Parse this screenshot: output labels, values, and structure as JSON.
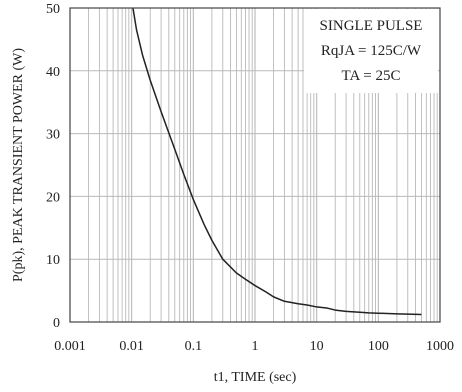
{
  "chart_data": {
    "type": "line",
    "xscale": "log",
    "yscale": "linear",
    "xlim": [
      0.001,
      1000
    ],
    "ylim": [
      0,
      50
    ],
    "xlabel": "t1, TIME (sec)",
    "ylabel": "P(pk), PEAK TRANSIENT POWER (W)",
    "x_ticks": [
      0.001,
      0.01,
      0.1,
      1,
      10,
      100,
      1000
    ],
    "x_tick_labels": [
      "0.001",
      "0.01",
      "0.1",
      "1",
      "10",
      "100",
      "1000"
    ],
    "y_ticks": [
      0,
      10,
      20,
      30,
      40,
      50
    ],
    "y_tick_labels": [
      "0",
      "10",
      "20",
      "30",
      "40",
      "50"
    ],
    "grid": "on (log minor vertical lines, major horizontal lines)",
    "annotation": [
      "SINGLE PULSE",
      "RqJA = 125C/W",
      "TA = 25C"
    ],
    "annotation_placement": "top-right",
    "line_color": "#222222",
    "grid_color": "#b9b9b9",
    "series": [
      {
        "x": [
          0.0105,
          0.012,
          0.015,
          0.02,
          0.03,
          0.05,
          0.07,
          0.1,
          0.15,
          0.2,
          0.3,
          0.5,
          0.7,
          1,
          1.5,
          2,
          3,
          5,
          7,
          10,
          15,
          20,
          30,
          50,
          70,
          100,
          200,
          300,
          500
        ],
        "y": [
          50,
          46.5,
          42.5,
          38.5,
          33.5,
          27.5,
          23.5,
          19.5,
          15.5,
          13,
          10,
          7.8,
          6.8,
          5.8,
          4.8,
          4.0,
          3.3,
          2.9,
          2.7,
          2.4,
          2.2,
          1.9,
          1.7,
          1.55,
          1.45,
          1.4,
          1.3,
          1.25,
          1.2
        ]
      }
    ]
  }
}
